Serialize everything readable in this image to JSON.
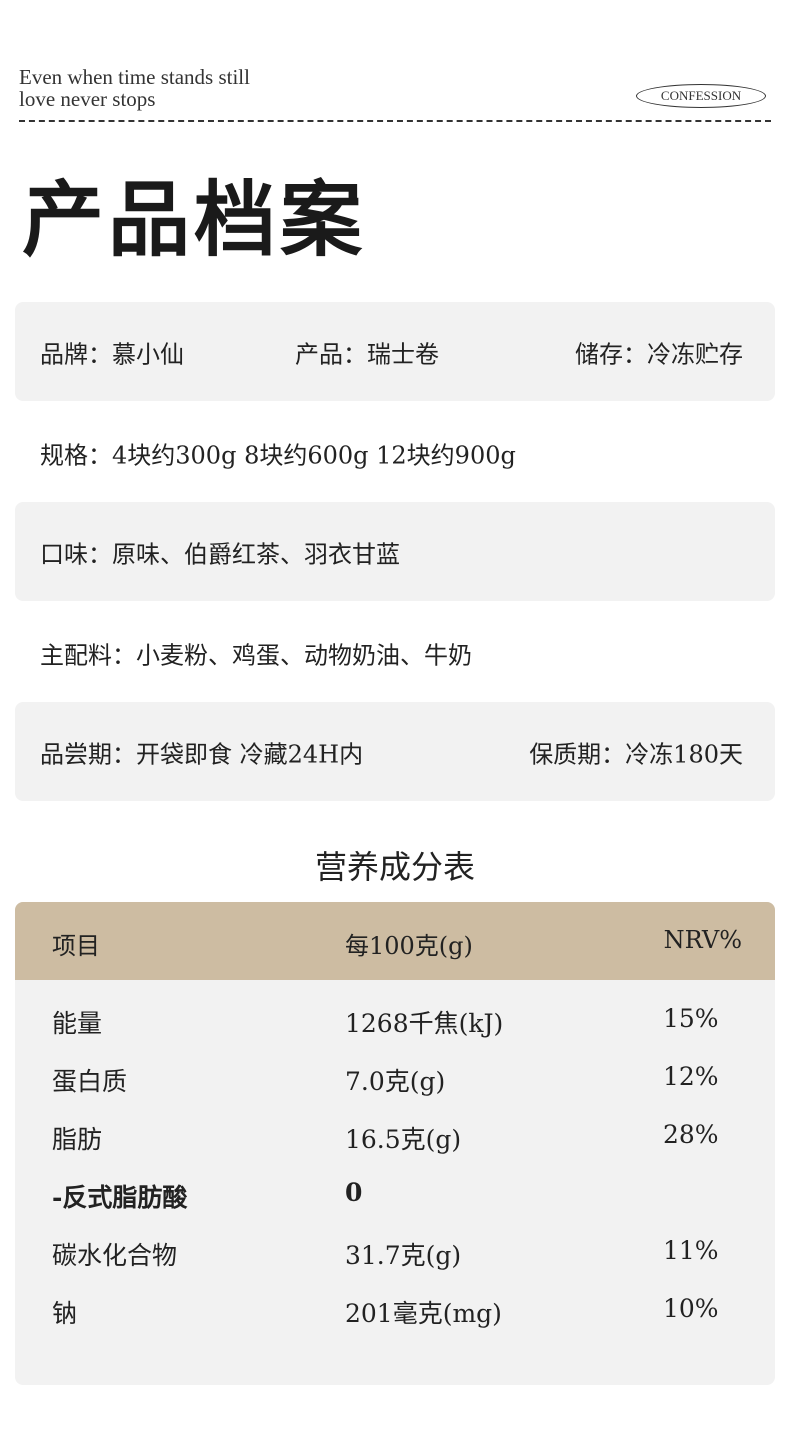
{
  "header": {
    "slogan_line1": "Even when time stands still",
    "slogan_line2": "love never stops",
    "badge": "CONFESSION"
  },
  "title": "产品档案",
  "info": {
    "brand": "品牌：慕小仙",
    "product": "产品：瑞士卷",
    "storage": "储存：冷冻贮存",
    "spec": "规格：4块约300g  8块约600g  12块约900g",
    "flavor": "口味：原味、伯爵红茶、羽衣甘蓝",
    "ingredients": "主配料：小麦粉、鸡蛋、动物奶油、牛奶",
    "tasting": "品尝期：开袋即食 冷藏24H内",
    "shelf_life": "保质期：冷冻180天"
  },
  "nutrition": {
    "title": "营养成分表",
    "headers": [
      "项目",
      "每100克(g)",
      "NRV%"
    ],
    "rows": [
      {
        "item": "能量",
        "value": "1268千焦(kJ)",
        "nrv": "15%"
      },
      {
        "item": "蛋白质",
        "value": "7.0克(g)",
        "nrv": "12%"
      },
      {
        "item": "脂肪",
        "value": "16.5克(g)",
        "nrv": "28%"
      },
      {
        "item": "-反式脂肪酸",
        "value": "0",
        "nrv": ""
      },
      {
        "item": "碳水化合物",
        "value": "31.7克(g)",
        "nrv": "11%"
      },
      {
        "item": "钠",
        "value": "201毫克(mg)",
        "nrv": "10%"
      }
    ]
  },
  "colors": {
    "header_bg": "#cdbca2",
    "box_bg": "#f2f2f2"
  }
}
